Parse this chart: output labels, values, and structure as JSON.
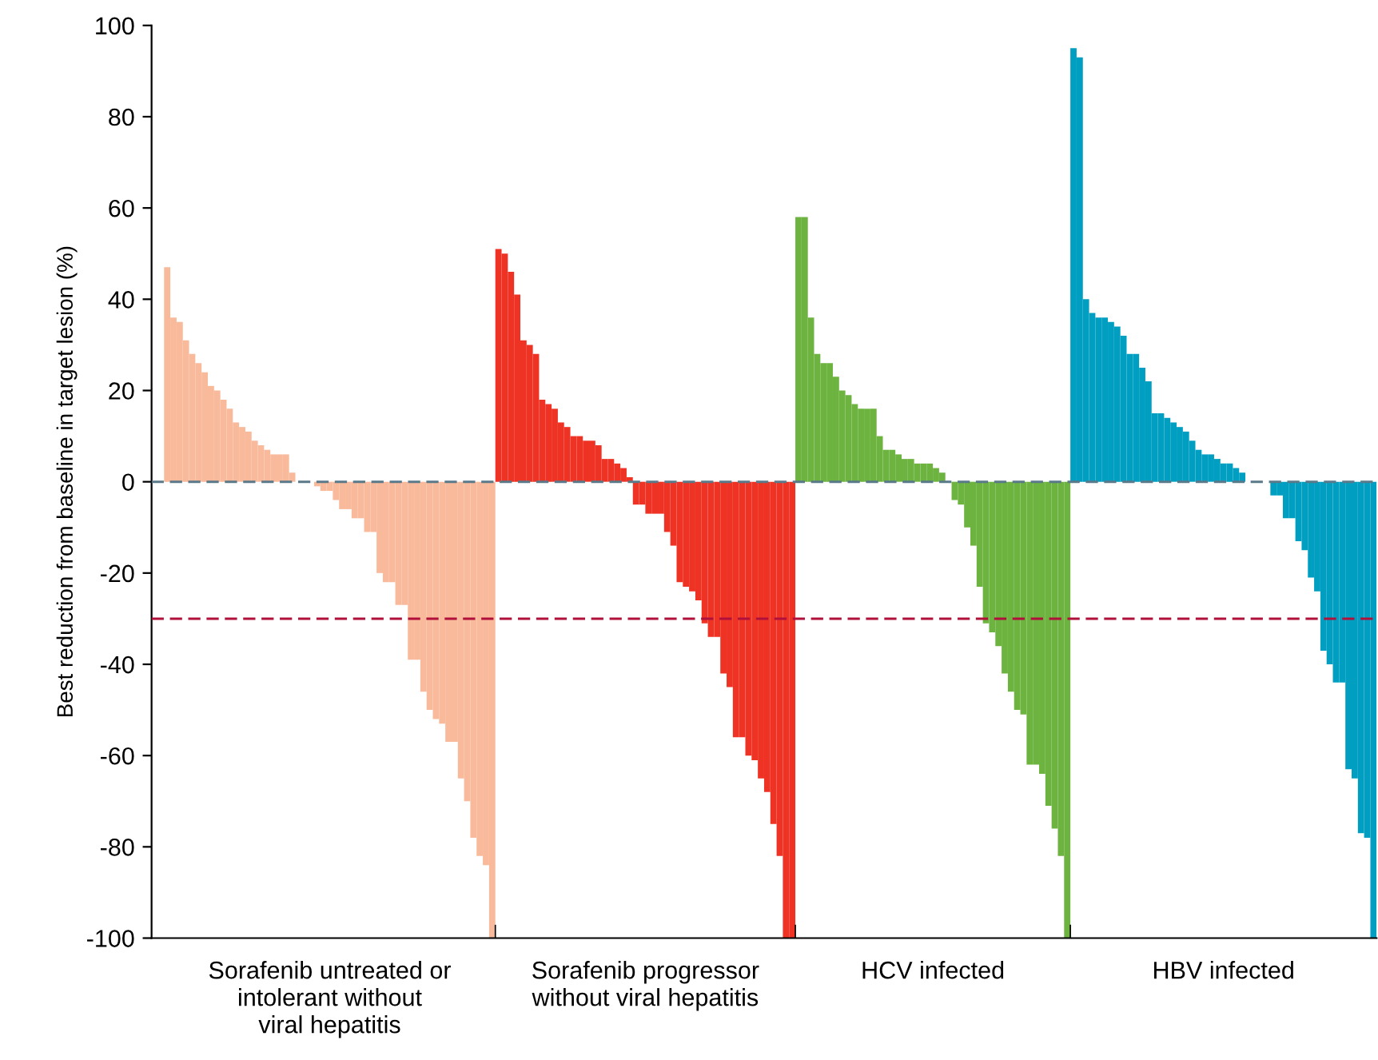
{
  "chart_data": {
    "type": "bar",
    "ylabel": "Best reduction from baseline in target lesion (%)",
    "annotations": [
      "Sorafenib untreated or\nintolerant without\nviral hepatitis",
      "Sorafenib progressor\nwithout viral hepatitis",
      "HCV infected",
      "HBV infected"
    ],
    "categories": [
      null,
      null,
      null,
      null,
      null,
      null,
      null,
      null,
      null,
      null,
      null,
      null,
      null,
      null,
      null,
      null,
      null,
      null,
      null,
      null,
      null,
      null,
      null,
      null,
      null,
      null,
      null,
      null,
      null,
      null,
      null,
      null,
      null,
      null,
      null,
      null,
      null,
      null,
      null,
      null,
      null,
      null,
      null,
      null,
      null,
      null,
      null,
      null,
      null,
      null,
      null,
      null,
      null,
      null,
      null,
      null,
      null,
      null,
      null,
      null,
      null,
      null,
      null,
      null,
      null,
      null,
      null,
      null,
      null,
      null,
      null,
      null,
      null,
      null,
      null,
      null,
      null,
      null,
      null,
      null,
      null,
      null,
      null,
      null,
      null,
      null,
      null,
      null,
      null,
      null,
      null,
      null,
      null,
      null,
      null,
      null,
      null,
      null,
      null,
      null,
      null,
      null,
      null,
      null,
      null,
      null,
      null,
      null,
      null,
      null,
      null,
      null,
      null,
      null,
      null,
      null,
      null,
      null,
      null,
      null,
      null,
      null,
      null,
      null,
      null,
      null,
      null,
      null,
      null,
      null,
      null,
      null,
      null,
      null,
      null,
      null,
      null,
      null,
      null,
      null,
      null,
      null,
      null,
      null,
      null,
      null,
      null,
      null,
      null,
      null,
      null,
      null,
      null,
      null,
      null,
      null,
      null,
      null,
      null,
      null,
      null,
      null,
      null,
      null,
      null,
      null,
      null,
      null,
      null,
      null,
      null,
      null,
      null,
      null,
      null,
      null,
      null,
      null,
      null,
      null,
      null,
      null,
      null,
      null,
      null,
      null,
      null,
      null,
      null,
      null,
      null,
      null,
      null,
      null,
      null,
      null
    ],
    "series": [
      {
        "color": "#f9b99b",
        "values": [
          null,
          null,
          47,
          36,
          35,
          31,
          28,
          26,
          24,
          21,
          20,
          18,
          16,
          13,
          12,
          11,
          9,
          8,
          7,
          6,
          6,
          6,
          2,
          0,
          0,
          0,
          -1,
          -2,
          -2,
          -4,
          -6,
          -6,
          -8,
          -8,
          -11,
          -11,
          -20,
          -22,
          -22,
          -27,
          -27,
          -39,
          -39,
          -46,
          -50,
          -52,
          -53,
          -57,
          -57,
          -65,
          -70,
          -78,
          -82,
          -84,
          -100,
          null,
          null,
          null,
          null,
          null,
          null,
          null,
          null,
          null,
          null,
          null,
          null,
          null,
          null,
          null,
          null,
          null,
          null,
          null,
          null,
          null,
          null,
          null,
          null,
          null,
          null,
          null,
          null,
          null,
          null,
          null,
          null,
          null,
          null,
          null,
          null,
          null,
          null,
          null,
          null,
          null,
          null,
          null,
          null,
          null,
          null,
          null,
          null,
          null,
          null,
          null,
          null,
          null,
          null,
          null,
          null,
          null,
          null,
          null,
          null,
          null,
          null,
          null,
          null,
          null,
          null,
          null,
          null,
          null,
          null,
          null,
          null,
          null,
          null,
          null,
          null,
          null,
          null,
          null,
          null,
          null,
          null,
          null,
          null,
          null,
          null,
          null,
          null,
          null,
          null,
          null,
          null,
          null,
          null,
          null,
          null,
          null,
          null,
          null,
          null,
          null,
          null,
          null,
          null,
          null,
          null,
          null,
          null,
          null,
          null,
          null,
          null,
          null,
          null,
          null,
          null,
          null,
          null,
          null,
          null,
          null,
          null,
          null,
          null,
          null,
          null,
          null,
          null,
          null,
          null,
          null,
          null,
          null,
          null,
          null,
          null,
          null,
          null,
          null,
          null,
          null
        ]
      },
      {
        "color": "#ee3224",
        "values": [
          null,
          null,
          null,
          null,
          null,
          null,
          null,
          null,
          null,
          null,
          null,
          null,
          null,
          null,
          null,
          null,
          null,
          null,
          null,
          null,
          null,
          null,
          null,
          null,
          null,
          null,
          null,
          null,
          null,
          null,
          null,
          null,
          null,
          null,
          null,
          null,
          null,
          null,
          null,
          null,
          null,
          null,
          null,
          null,
          null,
          null,
          null,
          null,
          null,
          null,
          null,
          null,
          null,
          null,
          null,
          51,
          50,
          46,
          41,
          31,
          30,
          28,
          18,
          17,
          16,
          13,
          12,
          10,
          10,
          9,
          9,
          8,
          5,
          5,
          4,
          3,
          1,
          -5,
          -5,
          -7,
          -7,
          -7,
          -11,
          -14,
          -22,
          -23,
          -24,
          -26,
          -31,
          -34,
          -34,
          -42,
          -45,
          -56,
          -56,
          -60,
          -61,
          -65,
          -68,
          -75,
          -82,
          -100,
          -100,
          null,
          null,
          null,
          null,
          null,
          null,
          null,
          null,
          null,
          null,
          null,
          null,
          null,
          null,
          null,
          null,
          null,
          null,
          null,
          null,
          null,
          null,
          null,
          null,
          null,
          null,
          null,
          null,
          null,
          null,
          null,
          null,
          null,
          null,
          null,
          null,
          null,
          null,
          null,
          null,
          null,
          null,
          null,
          null,
          null,
          null,
          null,
          null,
          null,
          null,
          null,
          null,
          null,
          null,
          null,
          null,
          null,
          null,
          null,
          null,
          null,
          null,
          null,
          null,
          null,
          null,
          null,
          null,
          null,
          null,
          null,
          null,
          null,
          null,
          null,
          null,
          null,
          null,
          null,
          null,
          null,
          null,
          null,
          null,
          null,
          null,
          null,
          null,
          null,
          null,
          null,
          null,
          null
        ]
      },
      {
        "color": "#6db33f",
        "values": [
          null,
          null,
          null,
          null,
          null,
          null,
          null,
          null,
          null,
          null,
          null,
          null,
          null,
          null,
          null,
          null,
          null,
          null,
          null,
          null,
          null,
          null,
          null,
          null,
          null,
          null,
          null,
          null,
          null,
          null,
          null,
          null,
          null,
          null,
          null,
          null,
          null,
          null,
          null,
          null,
          null,
          null,
          null,
          null,
          null,
          null,
          null,
          null,
          null,
          null,
          null,
          null,
          null,
          null,
          null,
          null,
          null,
          null,
          null,
          null,
          null,
          null,
          null,
          null,
          null,
          null,
          null,
          null,
          null,
          null,
          null,
          null,
          null,
          null,
          null,
          null,
          null,
          null,
          null,
          null,
          null,
          null,
          null,
          null,
          null,
          null,
          null,
          null,
          null,
          null,
          null,
          null,
          null,
          null,
          null,
          null,
          null,
          null,
          null,
          null,
          null,
          null,
          null,
          58,
          58,
          36,
          28,
          26,
          26,
          23,
          20,
          19,
          17,
          16,
          16,
          16,
          10,
          7,
          7,
          6,
          5,
          5,
          4,
          4,
          4,
          3,
          2,
          0,
          -4,
          -5,
          -10,
          -14,
          -23,
          -31,
          -33,
          -36,
          -42,
          -46,
          -50,
          -51,
          -62,
          -62,
          -64,
          -71,
          -76,
          -82,
          -100,
          null,
          null,
          null,
          null,
          null,
          null,
          null,
          null,
          null,
          null,
          null,
          null,
          null,
          null,
          null,
          null,
          null,
          null,
          null,
          null,
          null,
          null,
          null,
          null,
          null,
          null,
          null,
          null,
          null,
          null,
          null,
          null,
          null,
          null,
          null,
          null,
          null,
          null,
          null,
          null,
          null,
          null,
          null,
          null,
          null,
          null,
          null,
          null,
          null
        ]
      },
      {
        "color": "#009fc2",
        "values": [
          null,
          null,
          null,
          null,
          null,
          null,
          null,
          null,
          null,
          null,
          null,
          null,
          null,
          null,
          null,
          null,
          null,
          null,
          null,
          null,
          null,
          null,
          null,
          null,
          null,
          null,
          null,
          null,
          null,
          null,
          null,
          null,
          null,
          null,
          null,
          null,
          null,
          null,
          null,
          null,
          null,
          null,
          null,
          null,
          null,
          null,
          null,
          null,
          null,
          null,
          null,
          null,
          null,
          null,
          null,
          null,
          null,
          null,
          null,
          null,
          null,
          null,
          null,
          null,
          null,
          null,
          null,
          null,
          null,
          null,
          null,
          null,
          null,
          null,
          null,
          null,
          null,
          null,
          null,
          null,
          null,
          null,
          null,
          null,
          null,
          null,
          null,
          null,
          null,
          null,
          null,
          null,
          null,
          null,
          null,
          null,
          null,
          null,
          null,
          null,
          null,
          null,
          null,
          null,
          null,
          null,
          null,
          null,
          null,
          null,
          null,
          null,
          null,
          null,
          null,
          null,
          null,
          null,
          null,
          null,
          null,
          null,
          null,
          null,
          null,
          null,
          null,
          null,
          null,
          null,
          null,
          null,
          null,
          null,
          null,
          null,
          null,
          null,
          null,
          null,
          null,
          null,
          null,
          null,
          null,
          null,
          null,
          95,
          93,
          40,
          37,
          36,
          36,
          35,
          34,
          32,
          28,
          28,
          25,
          22,
          15,
          15,
          14,
          13,
          12,
          11,
          9,
          7,
          6,
          6,
          5,
          4,
          4,
          3,
          2,
          0,
          0,
          0,
          0,
          -3,
          -3,
          -8,
          -8,
          -13,
          -15,
          -21,
          -24,
          -37,
          -40,
          -44,
          -44,
          -63,
          -65,
          -77,
          -78,
          -100
        ]
      }
    ],
    "ylim": [
      -100,
      100
    ],
    "yticks": [
      -100,
      -80,
      -60,
      -40,
      -20,
      0,
      20,
      40,
      60,
      80,
      100
    ],
    "ref_lines": [
      {
        "axis": "y",
        "value": 0,
        "color": "#5a7a8a",
        "line_style": "dashed"
      },
      {
        "axis": "y",
        "value": -30,
        "color": "#b0103a",
        "line_style": "dashed"
      }
    ],
    "grid": false,
    "legend": false
  }
}
